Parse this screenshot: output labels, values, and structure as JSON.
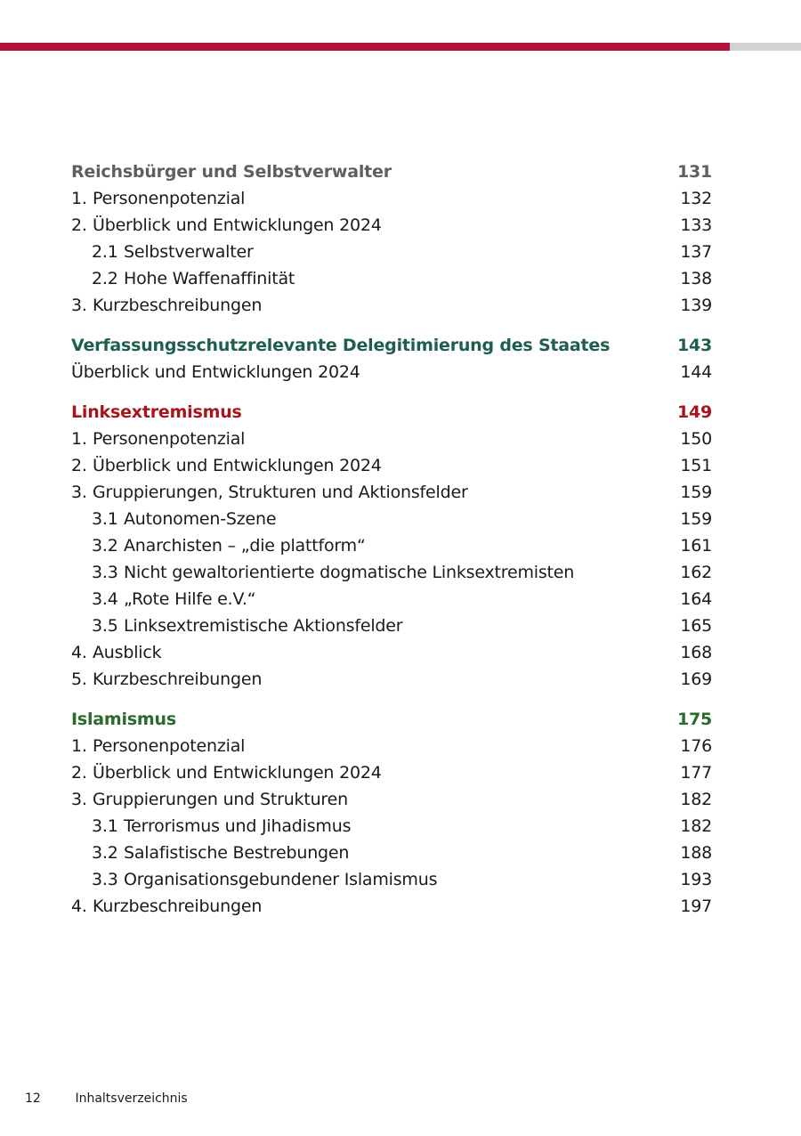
{
  "colors": {
    "bar_red": "#b4143c",
    "bar_gray": "#d2d2d2"
  },
  "sections": [
    {
      "title": "Reichsbürger und Selbstverwalter",
      "page": "131",
      "color": "#5f5f5f",
      "items": [
        {
          "level": 1,
          "num": "1.",
          "title": "Personenpotenzial",
          "page": "132"
        },
        {
          "level": 1,
          "num": "2.",
          "title": "Überblick und Entwicklungen 2024",
          "page": "133"
        },
        {
          "level": 2,
          "num": "2.1",
          "title": "Selbstverwalter",
          "page": "137"
        },
        {
          "level": 2,
          "num": "2.2",
          "title": "Hohe Waffenaffinität",
          "page": "138"
        },
        {
          "level": 1,
          "num": "3.",
          "title": "Kurzbeschreibungen",
          "page": "139"
        }
      ]
    },
    {
      "title": "Verfassungsschutzrelevante Delegitimierung des Staates",
      "page": "143",
      "color": "#1e5e50",
      "items": [
        {
          "level": 0,
          "num": "",
          "title": "Überblick und Entwicklungen 2024",
          "page": "144"
        }
      ]
    },
    {
      "title": "Linksextremismus",
      "page": "149",
      "color": "#a8141e",
      "items": [
        {
          "level": 1,
          "num": "1.",
          "title": "Personenpotenzial",
          "page": "150"
        },
        {
          "level": 1,
          "num": "2.",
          "title": "Überblick und Entwicklungen 2024",
          "page": "151"
        },
        {
          "level": 1,
          "num": "3.",
          "title": "Gruppierungen, Strukturen und Aktionsfelder",
          "page": "159"
        },
        {
          "level": 2,
          "num": "3.1",
          "title": "Autonomen-Szene",
          "page": "159"
        },
        {
          "level": 2,
          "num": "3.2",
          "title": "Anarchisten – „die plattform“",
          "page": "161"
        },
        {
          "level": 2,
          "num": "3.3",
          "title": "Nicht gewaltorientierte dogmatische Linksextremisten",
          "page": "162"
        },
        {
          "level": 2,
          "num": "3.4",
          "title": "„Rote Hilfe e.V.“",
          "page": "164"
        },
        {
          "level": 2,
          "num": "3.5",
          "title": "Linksextremistische Aktionsfelder",
          "page": "165"
        },
        {
          "level": 1,
          "num": "4.",
          "title": "Ausblick",
          "page": "168"
        },
        {
          "level": 1,
          "num": "5.",
          "title": "Kurzbeschreibungen",
          "page": "169"
        }
      ]
    },
    {
      "title": "Islamismus",
      "page": "175",
      "color": "#2a6a2a",
      "items": [
        {
          "level": 1,
          "num": "1.",
          "title": "Personenpotenzial",
          "page": "176"
        },
        {
          "level": 1,
          "num": "2.",
          "title": "Überblick und Entwicklungen 2024",
          "page": "177"
        },
        {
          "level": 1,
          "num": "3.",
          "title": "Gruppierungen und Strukturen",
          "page": "182"
        },
        {
          "level": 2,
          "num": "3.1",
          "title": "Terrorismus und Jihadismus",
          "page": "182"
        },
        {
          "level": 2,
          "num": "3.2",
          "title": "Salafistische Bestrebungen",
          "page": "188"
        },
        {
          "level": 2,
          "num": "3.3",
          "title": "Organisationsgebundener Islamismus",
          "page": "193"
        },
        {
          "level": 1,
          "num": "4.",
          "title": "Kurzbeschreibungen",
          "page": "197"
        }
      ]
    }
  ],
  "footer": {
    "page_number": "12",
    "label": "Inhaltsverzeichnis"
  }
}
